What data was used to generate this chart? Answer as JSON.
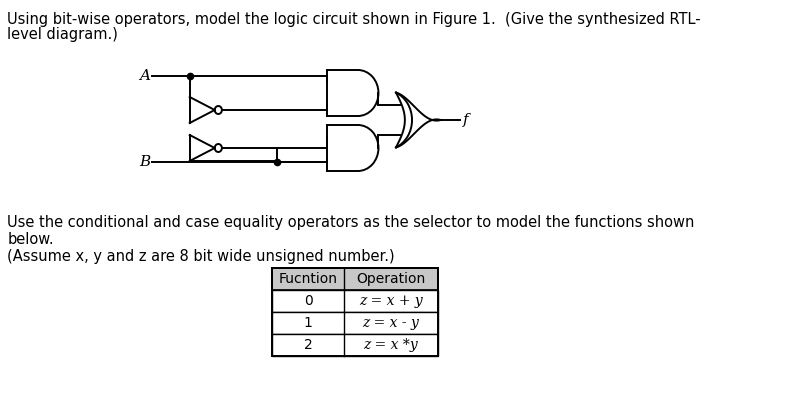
{
  "line1": "Using bit-wise operators, model the logic circuit shown in Figure 1.  (Give the synthesized RTL-",
  "line2": "level diagram.)",
  "line3": "Use the conditional and case equality operators as the selector to model the functions shown",
  "line4": "below.",
  "line5": "(Assume x, y and z are 8 bit wide unsigned number.)",
  "table_headers": [
    "Fucntion",
    "Operation"
  ],
  "table_rows": [
    [
      "0",
      "z = x + y"
    ],
    [
      "1",
      "z = x - y"
    ],
    [
      "2",
      "z = x *y"
    ]
  ],
  "label_A": "A",
  "label_B": "B",
  "label_f": "f",
  "bg_color": "#ffffff",
  "text_color": "#000000",
  "font_size_body": 10.5,
  "font_size_table": 10,
  "font_size_label": 11
}
